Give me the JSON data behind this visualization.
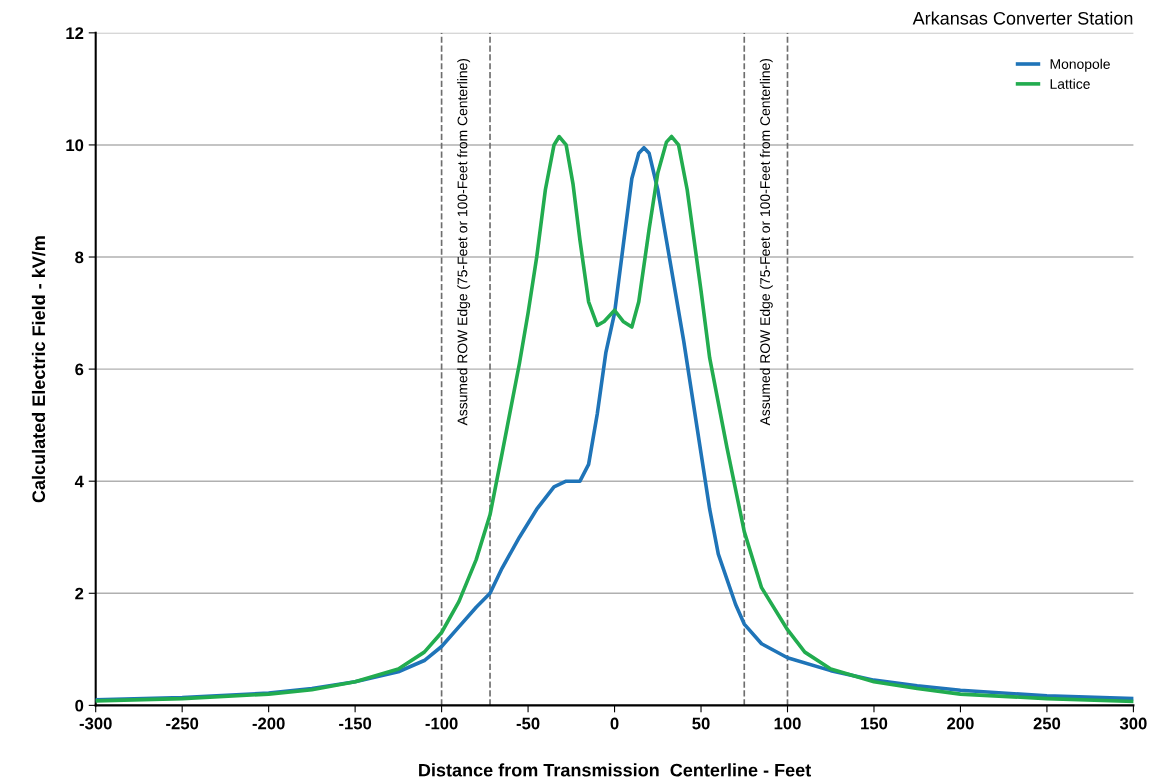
{
  "chart_data": {
    "type": "line",
    "title": "Arkansas Converter Station",
    "xlabel": "Distance from Transmission  Centerline - Feet",
    "ylabel": "Calculated Electric Field - kV/m",
    "xlim": [
      -300,
      300
    ],
    "xticks": [
      -300,
      -250,
      -200,
      -150,
      -100,
      -50,
      0,
      50,
      100,
      150,
      200,
      250,
      300
    ],
    "ylim": [
      0,
      12
    ],
    "yticks": [
      0,
      2,
      4,
      6,
      8,
      10,
      12
    ],
    "grid": "y",
    "legend": "top right",
    "marker": "none",
    "line_style": "solid",
    "series": [
      {
        "name": "Monopole",
        "color": "#1f74b8",
        "x": [
          -300,
          -250,
          -200,
          -175,
          -150,
          -125,
          -110,
          -100,
          -90,
          -80,
          -72,
          -65,
          -55,
          -45,
          -35,
          -28,
          -20,
          -15,
          -10,
          -5,
          0,
          5,
          10,
          14,
          17,
          20,
          25,
          30,
          40,
          50,
          55,
          60,
          70,
          75,
          85,
          100,
          125,
          150,
          175,
          200,
          250,
          300
        ],
        "values": [
          0.1,
          0.14,
          0.22,
          0.3,
          0.42,
          0.6,
          0.8,
          1.05,
          1.4,
          1.75,
          2.0,
          2.45,
          3.0,
          3.5,
          3.9,
          4.0,
          4.0,
          4.3,
          5.2,
          6.3,
          7.0,
          8.2,
          9.4,
          9.85,
          9.95,
          9.85,
          9.2,
          8.3,
          6.5,
          4.5,
          3.5,
          2.7,
          1.8,
          1.45,
          1.1,
          0.85,
          0.62,
          0.45,
          0.35,
          0.27,
          0.17,
          0.12
        ]
      },
      {
        "name": "Lattice",
        "color": "#22ac4f",
        "x": [
          -300,
          -250,
          -200,
          -175,
          -150,
          -125,
          -110,
          -100,
          -90,
          -80,
          -72,
          -65,
          -55,
          -50,
          -45,
          -40,
          -35,
          -32,
          -28,
          -24,
          -20,
          -15,
          -10,
          -6,
          0,
          5,
          10,
          14,
          20,
          25,
          30,
          33,
          37,
          42,
          50,
          55,
          65,
          75,
          85,
          100,
          110,
          125,
          150,
          175,
          200,
          250,
          300
        ],
        "values": [
          0.08,
          0.12,
          0.2,
          0.28,
          0.42,
          0.65,
          0.95,
          1.3,
          1.85,
          2.6,
          3.4,
          4.5,
          6.1,
          7.0,
          8.0,
          9.2,
          10.0,
          10.15,
          10.0,
          9.3,
          8.3,
          7.2,
          6.78,
          6.85,
          7.05,
          6.85,
          6.75,
          7.2,
          8.5,
          9.5,
          10.05,
          10.15,
          10.0,
          9.2,
          7.4,
          6.2,
          4.6,
          3.1,
          2.1,
          1.35,
          0.95,
          0.65,
          0.42,
          0.3,
          0.2,
          0.12,
          0.07
        ]
      }
    ],
    "ref_lines": [
      {
        "axis": "x",
        "value": -100,
        "label": "Assumed ROW Edge (75-Feet or 100-Feet from Centerline)",
        "color": "#6e6e6e",
        "line_style": "dashed"
      },
      {
        "axis": "x",
        "value": -72,
        "color": "#6e6e6e",
        "line_style": "dashed"
      },
      {
        "axis": "x",
        "value": 75,
        "label": "Assumed ROW Edge (75-Feet or 100-Feet from Centerline)",
        "color": "#6e6e6e",
        "line_style": "dashed"
      },
      {
        "axis": "x",
        "value": 100,
        "color": "#6e6e6e",
        "line_style": "dashed"
      }
    ]
  }
}
